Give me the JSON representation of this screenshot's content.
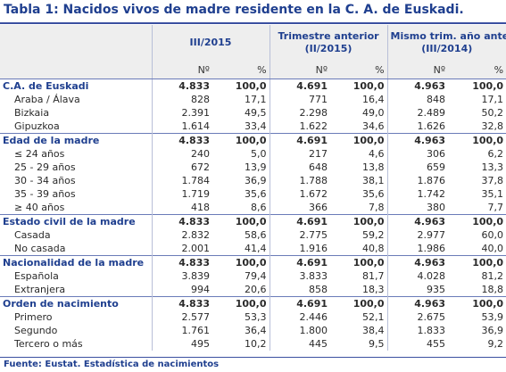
{
  "title": "Tabla 1: Nacidos vivos de madre residente en la C. A. de Euskadi.",
  "source": "Fuente: Eustat. Estadística de nacimientos",
  "periods": [
    {
      "label": "III/2015",
      "sub": ""
    },
    {
      "label": "Trimestre anterior",
      "sub": "(II/2015)"
    },
    {
      "label": "Mismo trim. año anterior",
      "sub": "(III/2014)"
    }
  ],
  "col_n": "Nº",
  "col_pct": "%",
  "groups": [
    {
      "label": "C.A. de Euskadi",
      "values": [
        "4.833",
        "100,0",
        "4.691",
        "100,0",
        "4.963",
        "100,0"
      ],
      "rows": [
        {
          "label": "Araba / Álava",
          "values": [
            "828",
            "17,1",
            "771",
            "16,4",
            "848",
            "17,1"
          ]
        },
        {
          "label": "Bizkaia",
          "values": [
            "2.391",
            "49,5",
            "2.298",
            "49,0",
            "2.489",
            "50,2"
          ]
        },
        {
          "label": "Gipuzkoa",
          "values": [
            "1.614",
            "33,4",
            "1.622",
            "34,6",
            "1.626",
            "32,8"
          ]
        }
      ]
    },
    {
      "label": "Edad de la madre",
      "values": [
        "4.833",
        "100,0",
        "4.691",
        "100,0",
        "4.963",
        "100,0"
      ],
      "rows": [
        {
          "label": "≤ 24 años",
          "values": [
            "240",
            "5,0",
            "217",
            "4,6",
            "306",
            "6,2"
          ]
        },
        {
          "label": "25 - 29 años",
          "values": [
            "672",
            "13,9",
            "648",
            "13,8",
            "659",
            "13,3"
          ]
        },
        {
          "label": "30 - 34 años",
          "values": [
            "1.784",
            "36,9",
            "1.788",
            "38,1",
            "1.876",
            "37,8"
          ]
        },
        {
          "label": "35 - 39 años",
          "values": [
            "1.719",
            "35,6",
            "1.672",
            "35,6",
            "1.742",
            "35,1"
          ]
        },
        {
          "label": "≥ 40 años",
          "values": [
            "418",
            "8,6",
            "366",
            "7,8",
            "380",
            "7,7"
          ]
        }
      ]
    },
    {
      "label": "Estado civil de la madre",
      "values": [
        "4.833",
        "100,0",
        "4.691",
        "100,0",
        "4.963",
        "100,0"
      ],
      "rows": [
        {
          "label": "Casada",
          "values": [
            "2.832",
            "58,6",
            "2.775",
            "59,2",
            "2.977",
            "60,0"
          ]
        },
        {
          "label": "No casada",
          "values": [
            "2.001",
            "41,4",
            "1.916",
            "40,8",
            "1.986",
            "40,0"
          ]
        }
      ]
    },
    {
      "label": "Nacionalidad de la madre",
      "values": [
        "4.833",
        "100,0",
        "4.691",
        "100,0",
        "4.963",
        "100,0"
      ],
      "rows": [
        {
          "label": "Española",
          "values": [
            "3.839",
            "79,4",
            "3.833",
            "81,7",
            "4.028",
            "81,2"
          ]
        },
        {
          "label": "Extranjera",
          "values": [
            "994",
            "20,6",
            "858",
            "18,3",
            "935",
            "18,8"
          ]
        }
      ]
    },
    {
      "label": "Orden de nacimiento",
      "values": [
        "4.833",
        "100,0",
        "4.691",
        "100,0",
        "4.963",
        "100,0"
      ],
      "rows": [
        {
          "label": "Primero",
          "values": [
            "2.577",
            "53,3",
            "2.446",
            "52,1",
            "2.675",
            "53,9"
          ]
        },
        {
          "label": "Segundo",
          "values": [
            "1.761",
            "36,4",
            "1.800",
            "38,4",
            "1.833",
            "36,9"
          ]
        },
        {
          "label": "Tercero o más",
          "values": [
            "495",
            "10,2",
            "445",
            "9,5",
            "455",
            "9,2"
          ]
        }
      ]
    }
  ]
}
